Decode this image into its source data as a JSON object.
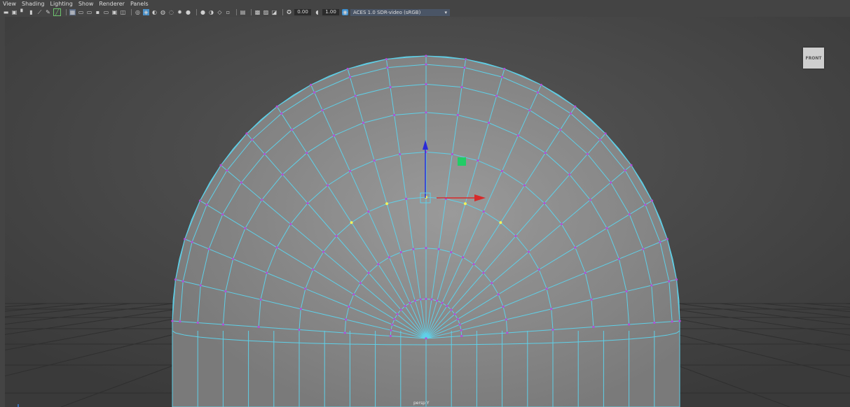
{
  "menu": {
    "items": [
      "View",
      "Shading",
      "Lighting",
      "Show",
      "Renderer",
      "Panels"
    ]
  },
  "toolbar": {
    "icons_group1": [
      "camera-select-icon",
      "camera-attributes-icon",
      "bookmark-icon",
      "image-plane-icon",
      "2d-pan-zoom-icon",
      "grease-pencil-icon",
      "uv-toggle-icon"
    ],
    "icons_group2": [
      "wireframe-icon",
      "smooth-shade-icon",
      "wireframe-on-shaded-icon",
      "textured-icon",
      "use-lights-icon",
      "shadows-icon",
      "screen-space-ao-icon",
      "motion-blur-icon",
      "anti-alias-icon",
      "depth-of-field-icon"
    ],
    "icons_group3": [
      "isolate-select-icon",
      "xray-icon",
      "xray-joints-icon",
      "xray-active-icon",
      "backface-icon"
    ],
    "icons_group4": [
      "grid-icon",
      "resolution-gate-icon",
      "gate-mask-icon",
      "field-chart-icon"
    ],
    "exposure_value": "0.00",
    "gamma_value": "1.00",
    "color_space": "ACES 1.0 SDR-video (sRGB)"
  },
  "viewport": {
    "view_cube_label": "FRONT",
    "camera_label": "persp Y"
  },
  "colors": {
    "viewport_bg": "#3d3d3d",
    "mesh_fill": "#8f8f8f",
    "wire": "#5fd0e8",
    "vertex": "#b34fd6",
    "selected_vertex": "#f2f25a",
    "manip_y": "#2a2ad8",
    "manip_x": "#d82a2a",
    "manip_handle": "#22cc66"
  }
}
